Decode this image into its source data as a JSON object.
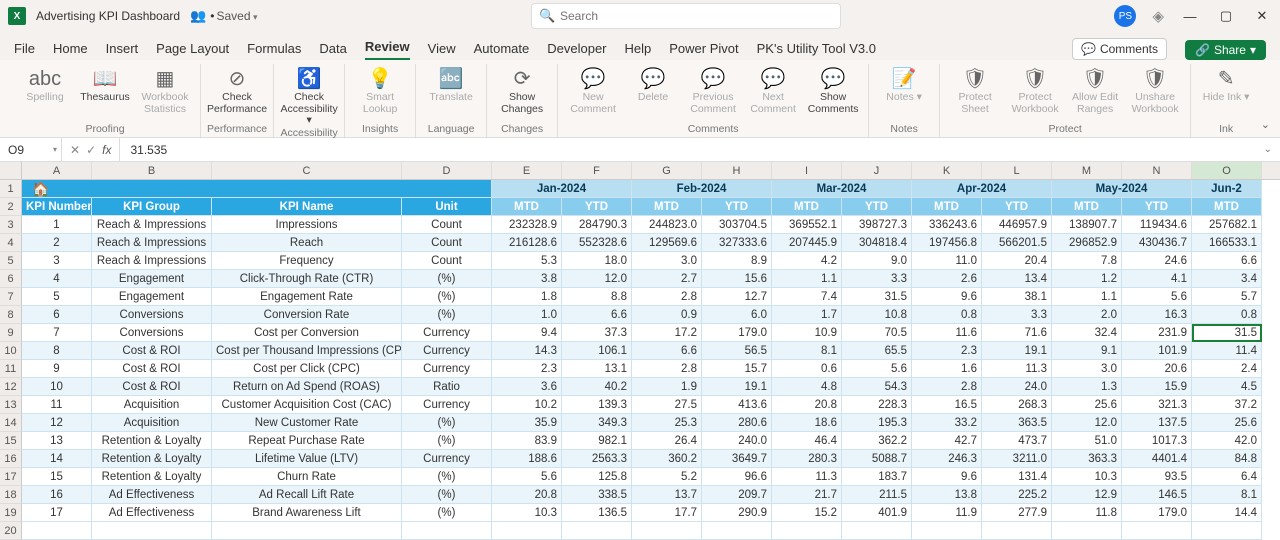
{
  "titlebar": {
    "app_icon_text": "X",
    "doc_title": "Advertising KPI Dashboard",
    "saved_prefix": "•",
    "saved_text": "Saved",
    "search_placeholder": "Search",
    "avatar_initials": "PS"
  },
  "menu": {
    "tabs": [
      "File",
      "Home",
      "Insert",
      "Page Layout",
      "Formulas",
      "Data",
      "Review",
      "View",
      "Automate",
      "Developer",
      "Help",
      "Power Pivot",
      "PK's Utility Tool V3.0"
    ],
    "active_index": 6,
    "comments_label": "Comments",
    "share_label": "Share"
  },
  "ribbon": {
    "groups": [
      {
        "label": "Proofing",
        "buttons": [
          {
            "label": "Spelling",
            "icon": "abc",
            "dim": true
          },
          {
            "label": "Thesaurus",
            "icon": "📖",
            "dim": false
          },
          {
            "label": "Workbook Statistics",
            "icon": "▦",
            "dim": true
          }
        ]
      },
      {
        "label": "Performance",
        "buttons": [
          {
            "label": "Check Performance",
            "icon": "⊘",
            "dim": false
          }
        ]
      },
      {
        "label": "Accessibility",
        "buttons": [
          {
            "label": "Check Accessibility ▾",
            "icon": "♿",
            "dim": false
          }
        ]
      },
      {
        "label": "Insights",
        "buttons": [
          {
            "label": "Smart Lookup",
            "icon": "💡",
            "dim": true
          }
        ]
      },
      {
        "label": "Language",
        "buttons": [
          {
            "label": "Translate",
            "icon": "🔤",
            "dim": true
          }
        ]
      },
      {
        "label": "Changes",
        "buttons": [
          {
            "label": "Show Changes",
            "icon": "⟳",
            "dim": false
          }
        ]
      },
      {
        "label": "Comments",
        "buttons": [
          {
            "label": "New Comment",
            "icon": "💬",
            "dim": true
          },
          {
            "label": "Delete",
            "icon": "💬",
            "dim": true
          },
          {
            "label": "Previous Comment",
            "icon": "💬",
            "dim": true
          },
          {
            "label": "Next Comment",
            "icon": "💬",
            "dim": true
          },
          {
            "label": "Show Comments",
            "icon": "💬",
            "dim": false
          }
        ]
      },
      {
        "label": "Notes",
        "buttons": [
          {
            "label": "Notes ▾",
            "icon": "📝",
            "dim": true
          }
        ]
      },
      {
        "label": "Protect",
        "buttons": [
          {
            "label": "Protect Sheet",
            "icon": "🛡",
            "dim": true
          },
          {
            "label": "Protect Workbook",
            "icon": "🛡",
            "dim": true
          },
          {
            "label": "Allow Edit Ranges",
            "icon": "🛡",
            "dim": true
          },
          {
            "label": "Unshare Workbook",
            "icon": "🛡",
            "dim": true
          }
        ]
      },
      {
        "label": "Ink",
        "buttons": [
          {
            "label": "Hide Ink ▾",
            "icon": "✎",
            "dim": true
          }
        ]
      }
    ]
  },
  "formula": {
    "namebox": "O9",
    "value": "31.535"
  },
  "grid": {
    "col_letters": [
      "A",
      "B",
      "C",
      "D",
      "E",
      "F",
      "G",
      "H",
      "I",
      "J",
      "K",
      "L",
      "M",
      "N",
      "O"
    ],
    "selected_col_index": 14,
    "col_widths": [
      "wA",
      "wB",
      "wC",
      "wD",
      "wM",
      "wM",
      "wM",
      "wM",
      "wM",
      "wM",
      "wM",
      "wM",
      "wM",
      "wM",
      "wM"
    ],
    "banner_months": [
      "Jan-2024",
      "Feb-2024",
      "Mar-2024",
      "Apr-2024",
      "May-2024",
      "Jun-2"
    ],
    "headers_left": [
      "KPI Number",
      "KPI Group",
      "KPI Name",
      "Unit"
    ],
    "mtd_ytd": [
      "MTD",
      "YTD",
      "MTD",
      "YTD",
      "MTD",
      "YTD",
      "MTD",
      "YTD",
      "MTD",
      "YTD",
      "MTD"
    ],
    "selected_cell": {
      "row_index": 6,
      "col_index": 14
    },
    "rows": [
      {
        "n": "1",
        "g": "Reach & Impressions",
        "k": "Impressions",
        "u": "Count",
        "v": [
          "232328.9",
          "284790.3",
          "244823.0",
          "303704.5",
          "369552.1",
          "398727.3",
          "336243.6",
          "446957.9",
          "138907.7",
          "119434.6",
          "257682.1"
        ]
      },
      {
        "n": "2",
        "g": "Reach & Impressions",
        "k": "Reach",
        "u": "Count",
        "v": [
          "216128.6",
          "552328.6",
          "129569.6",
          "327333.6",
          "207445.9",
          "304818.4",
          "197456.8",
          "566201.5",
          "296852.9",
          "430436.7",
          "166533.1"
        ]
      },
      {
        "n": "3",
        "g": "Reach & Impressions",
        "k": "Frequency",
        "u": "Count",
        "v": [
          "5.3",
          "18.0",
          "3.0",
          "8.9",
          "4.2",
          "9.0",
          "11.0",
          "20.4",
          "7.8",
          "24.6",
          "6.6"
        ]
      },
      {
        "n": "4",
        "g": "Engagement",
        "k": "Click-Through Rate (CTR)",
        "u": "(%)",
        "v": [
          "3.8",
          "12.0",
          "2.7",
          "15.6",
          "1.1",
          "3.3",
          "2.6",
          "13.4",
          "1.2",
          "4.1",
          "3.4"
        ]
      },
      {
        "n": "5",
        "g": "Engagement",
        "k": "Engagement Rate",
        "u": "(%)",
        "v": [
          "1.8",
          "8.8",
          "2.8",
          "12.7",
          "7.4",
          "31.5",
          "9.6",
          "38.1",
          "1.1",
          "5.6",
          "5.7"
        ]
      },
      {
        "n": "6",
        "g": "Conversions",
        "k": "Conversion Rate",
        "u": "(%)",
        "v": [
          "1.0",
          "6.6",
          "0.9",
          "6.0",
          "1.7",
          "10.8",
          "0.8",
          "3.3",
          "2.0",
          "16.3",
          "0.8"
        ]
      },
      {
        "n": "7",
        "g": "Conversions",
        "k": "Cost per Conversion",
        "u": "Currency",
        "v": [
          "9.4",
          "37.3",
          "17.2",
          "179.0",
          "10.9",
          "70.5",
          "11.6",
          "71.6",
          "32.4",
          "231.9",
          "31.5"
        ]
      },
      {
        "n": "8",
        "g": "Cost & ROI",
        "k": "Cost per Thousand Impressions (CPM)",
        "u": "Currency",
        "v": [
          "14.3",
          "106.1",
          "6.6",
          "56.5",
          "8.1",
          "65.5",
          "2.3",
          "19.1",
          "9.1",
          "101.9",
          "11.4"
        ]
      },
      {
        "n": "9",
        "g": "Cost & ROI",
        "k": "Cost per Click (CPC)",
        "u": "Currency",
        "v": [
          "2.3",
          "13.1",
          "2.8",
          "15.7",
          "0.6",
          "5.6",
          "1.6",
          "11.3",
          "3.0",
          "20.6",
          "2.4"
        ]
      },
      {
        "n": "10",
        "g": "Cost & ROI",
        "k": "Return on Ad Spend (ROAS)",
        "u": "Ratio",
        "v": [
          "3.6",
          "40.2",
          "1.9",
          "19.1",
          "4.8",
          "54.3",
          "2.8",
          "24.0",
          "1.3",
          "15.9",
          "4.5"
        ]
      },
      {
        "n": "11",
        "g": "Acquisition",
        "k": "Customer Acquisition Cost (CAC)",
        "u": "Currency",
        "v": [
          "10.2",
          "139.3",
          "27.5",
          "413.6",
          "20.8",
          "228.3",
          "16.5",
          "268.3",
          "25.6",
          "321.3",
          "37.2"
        ]
      },
      {
        "n": "12",
        "g": "Acquisition",
        "k": "New Customer Rate",
        "u": "(%)",
        "v": [
          "35.9",
          "349.3",
          "25.3",
          "280.6",
          "18.6",
          "195.3",
          "33.2",
          "363.5",
          "12.0",
          "137.5",
          "25.6"
        ]
      },
      {
        "n": "13",
        "g": "Retention & Loyalty",
        "k": "Repeat Purchase Rate",
        "u": "(%)",
        "v": [
          "83.9",
          "982.1",
          "26.4",
          "240.0",
          "46.4",
          "362.2",
          "42.7",
          "473.7",
          "51.0",
          "1017.3",
          "42.0"
        ]
      },
      {
        "n": "14",
        "g": "Retention & Loyalty",
        "k": "Lifetime Value (LTV)",
        "u": "Currency",
        "v": [
          "188.6",
          "2563.3",
          "360.2",
          "3649.7",
          "280.3",
          "5088.7",
          "246.3",
          "3211.0",
          "363.3",
          "4401.4",
          "84.8"
        ]
      },
      {
        "n": "15",
        "g": "Retention & Loyalty",
        "k": "Churn Rate",
        "u": "(%)",
        "v": [
          "5.6",
          "125.8",
          "5.2",
          "96.6",
          "11.3",
          "183.7",
          "9.6",
          "131.4",
          "10.3",
          "93.5",
          "6.4"
        ]
      },
      {
        "n": "16",
        "g": "Ad Effectiveness",
        "k": "Ad Recall Lift Rate",
        "u": "(%)",
        "v": [
          "20.8",
          "338.5",
          "13.7",
          "209.7",
          "21.7",
          "211.5",
          "13.8",
          "225.2",
          "12.9",
          "146.5",
          "8.1"
        ]
      },
      {
        "n": "17",
        "g": "Ad Effectiveness",
        "k": "Brand Awareness Lift",
        "u": "(%)",
        "v": [
          "10.3",
          "136.5",
          "17.7",
          "290.9",
          "15.2",
          "401.9",
          "11.9",
          "277.9",
          "11.8",
          "179.0",
          "14.4"
        ]
      }
    ],
    "empty_rows": [
      20
    ]
  },
  "colors": {
    "banner_dark": "#2aa7e1",
    "banner_light": "#b8def2",
    "header_mid": "#88cdee",
    "stripe": "#eaf5fb",
    "grid_border": "#cde3f0",
    "select_green": "#1a7f37"
  }
}
